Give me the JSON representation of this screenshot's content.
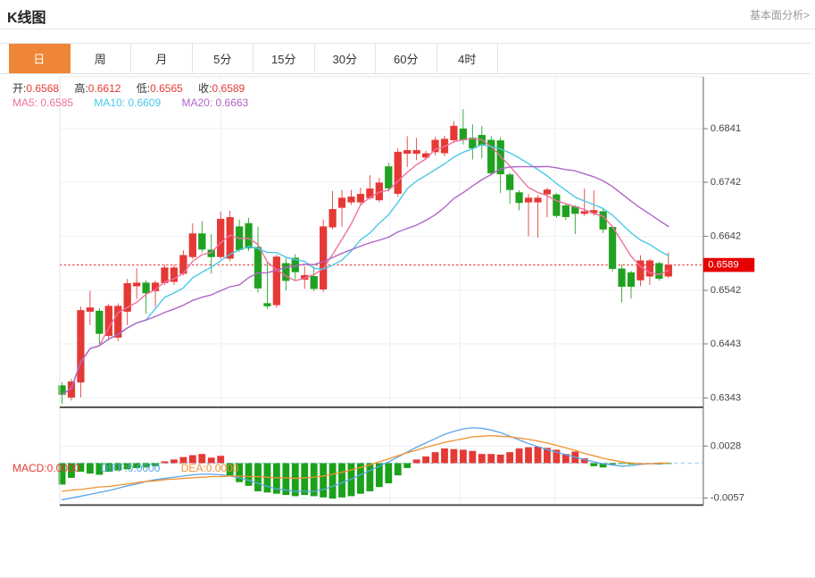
{
  "header": {
    "title": "K线图",
    "link": "基本面分析>"
  },
  "tabs": {
    "items": [
      "日",
      "周",
      "月",
      "5分",
      "15分",
      "30分",
      "60分",
      "4时"
    ],
    "active_index": 0
  },
  "legend": {
    "ohlc": [
      {
        "label": "开:",
        "value": "0.6568"
      },
      {
        "label": "高:",
        "value": "0.6612"
      },
      {
        "label": "低:",
        "value": "0.6565"
      },
      {
        "label": "收:",
        "value": "0.6589"
      }
    ],
    "ma": [
      {
        "label": "MA5:",
        "value": "0.6585"
      },
      {
        "label": "MA10:",
        "value": "0.6609"
      },
      {
        "label": "MA20:",
        "value": "0.6663"
      }
    ],
    "macd": [
      {
        "label": "MACD:",
        "value": "0.0000"
      },
      {
        "label": "DIFF:",
        "value": "0.0000"
      },
      {
        "label": "DEA:",
        "value": "0.0000"
      }
    ]
  },
  "colors": {
    "up": "#e53935",
    "down": "#21a121",
    "ma5": "#f0719f",
    "ma10": "#49c8e8",
    "ma20": "#b165c8",
    "diff": "#58a6e8",
    "dea": "#f2902f",
    "hist_up": "#e53935",
    "hist_down": "#1ba11b",
    "price_line": "#f54545",
    "price_tag_bg": "#e60000",
    "grid": "#e9eef5",
    "axis_line": "#666666",
    "axis_text": "#444444",
    "panel_border": "#3c3c3c",
    "zero_dash": "#a9d7f5",
    "tab_active": "#ef8536"
  },
  "chart_data": {
    "type": "candlestick",
    "title": "K线图",
    "legend_position": "top-left",
    "grid": "on",
    "price_axis": {
      "labels": [
        "0.6841",
        "0.6742",
        "0.6642",
        "0.6542",
        "0.6443",
        "0.6343"
      ],
      "max": 0.6841,
      "min": 0.6343,
      "current_price": "0.6589",
      "current_price_value": 0.6589
    },
    "time_grid_x": [
      216,
      434,
      524,
      647
    ],
    "ma_periods": [
      5,
      10,
      20
    ],
    "candles": [
      [
        0.6366,
        0.6372,
        0.6332,
        0.6349
      ],
      [
        0.6344,
        0.6378,
        0.6338,
        0.6373
      ],
      [
        0.6372,
        0.6512,
        0.6344,
        0.6505
      ],
      [
        0.6503,
        0.6541,
        0.6478,
        0.651
      ],
      [
        0.6504,
        0.6509,
        0.6443,
        0.6462
      ],
      [
        0.6458,
        0.6517,
        0.645,
        0.6513
      ],
      [
        0.6455,
        0.6518,
        0.6448,
        0.6513
      ],
      [
        0.6503,
        0.6563,
        0.6478,
        0.6555
      ],
      [
        0.655,
        0.6583,
        0.6526,
        0.6556
      ],
      [
        0.6556,
        0.656,
        0.6499,
        0.6537
      ],
      [
        0.6541,
        0.656,
        0.6512,
        0.6556
      ],
      [
        0.6556,
        0.6589,
        0.6552,
        0.6584
      ],
      [
        0.6558,
        0.6589,
        0.6552,
        0.6584
      ],
      [
        0.6573,
        0.6616,
        0.657,
        0.6607
      ],
      [
        0.6604,
        0.6666,
        0.66,
        0.6647
      ],
      [
        0.6647,
        0.667,
        0.6612,
        0.6618
      ],
      [
        0.6617,
        0.6646,
        0.6573,
        0.6604
      ],
      [
        0.6604,
        0.6688,
        0.66,
        0.6674
      ],
      [
        0.6601,
        0.6689,
        0.6596,
        0.6677
      ],
      [
        0.666,
        0.6673,
        0.6613,
        0.6617
      ],
      [
        0.6666,
        0.6676,
        0.6615,
        0.662
      ],
      [
        0.6622,
        0.666,
        0.6538,
        0.6546
      ],
      [
        0.6518,
        0.6594,
        0.6508,
        0.6513
      ],
      [
        0.6515,
        0.6608,
        0.651,
        0.6604
      ],
      [
        0.6592,
        0.6602,
        0.6542,
        0.656
      ],
      [
        0.6602,
        0.6609,
        0.656,
        0.6576
      ],
      [
        0.6562,
        0.6586,
        0.6545,
        0.657
      ],
      [
        0.6568,
        0.6586,
        0.6541,
        0.6545
      ],
      [
        0.6544,
        0.6673,
        0.6539,
        0.666
      ],
      [
        0.6659,
        0.6726,
        0.6655,
        0.6692
      ],
      [
        0.6695,
        0.6728,
        0.666,
        0.6713
      ],
      [
        0.6705,
        0.6728,
        0.67,
        0.6715
      ],
      [
        0.6705,
        0.6732,
        0.67,
        0.672
      ],
      [
        0.6713,
        0.6755,
        0.671,
        0.673
      ],
      [
        0.6709,
        0.675,
        0.6705,
        0.6741
      ],
      [
        0.6771,
        0.6778,
        0.6725,
        0.6731
      ],
      [
        0.6721,
        0.6805,
        0.6715,
        0.6798
      ],
      [
        0.6795,
        0.6827,
        0.677,
        0.6801
      ],
      [
        0.6795,
        0.6824,
        0.6783,
        0.6801
      ],
      [
        0.6788,
        0.68,
        0.6785,
        0.6795
      ],
      [
        0.6798,
        0.6826,
        0.6792,
        0.682
      ],
      [
        0.6796,
        0.6828,
        0.679,
        0.6822
      ],
      [
        0.682,
        0.6855,
        0.6815,
        0.6846
      ],
      [
        0.6841,
        0.6877,
        0.6812,
        0.682
      ],
      [
        0.6824,
        0.6849,
        0.6784,
        0.6805
      ],
      [
        0.6829,
        0.6846,
        0.6786,
        0.681
      ],
      [
        0.682,
        0.6828,
        0.6755,
        0.6759
      ],
      [
        0.6819,
        0.6825,
        0.6722,
        0.6757
      ],
      [
        0.6756,
        0.676,
        0.6702,
        0.6728
      ],
      [
        0.6723,
        0.6727,
        0.669,
        0.6704
      ],
      [
        0.6705,
        0.672,
        0.6642,
        0.6713
      ],
      [
        0.6705,
        0.6718,
        0.664,
        0.6713
      ],
      [
        0.672,
        0.6732,
        0.6677,
        0.6728
      ],
      [
        0.6719,
        0.6722,
        0.6676,
        0.668
      ],
      [
        0.6699,
        0.6702,
        0.6672,
        0.6678
      ],
      [
        0.6697,
        0.67,
        0.6646,
        0.6684
      ],
      [
        0.6684,
        0.673,
        0.668,
        0.6688
      ],
      [
        0.6685,
        0.6727,
        0.668,
        0.669
      ],
      [
        0.6688,
        0.6692,
        0.6648,
        0.6655
      ],
      [
        0.6659,
        0.6662,
        0.6577,
        0.6582
      ],
      [
        0.6582,
        0.659,
        0.652,
        0.6549
      ],
      [
        0.6575,
        0.6578,
        0.6527,
        0.6549
      ],
      [
        0.6561,
        0.6607,
        0.655,
        0.6597
      ],
      [
        0.6568,
        0.66,
        0.6552,
        0.6597
      ],
      [
        0.6592,
        0.6595,
        0.656,
        0.6564
      ],
      [
        0.6568,
        0.6612,
        0.6565,
        0.6589
      ]
    ],
    "macd": {
      "axis_labels": [
        "0.0028",
        "-0.0057"
      ],
      "axis_values": [
        0.0028,
        -0.0057
      ],
      "hist": [
        -0.0035,
        -0.0024,
        -0.0014,
        -0.0017,
        -0.0019,
        -0.0014,
        -0.0012,
        -0.001,
        -0.0008,
        -0.0007,
        -0.0005,
        0.0003,
        0.0006,
        0.001,
        0.0013,
        0.0015,
        0.0009,
        0.0012,
        -0.002,
        -0.0031,
        -0.0037,
        -0.0046,
        -0.0048,
        -0.005,
        -0.0052,
        -0.0054,
        -0.0052,
        -0.0054,
        -0.0056,
        -0.0058,
        -0.0056,
        -0.0054,
        -0.005,
        -0.0046,
        -0.0039,
        -0.0033,
        -0.002,
        -0.0008,
        0.0006,
        0.0011,
        0.0018,
        0.0024,
        0.0023,
        0.0022,
        0.002,
        0.0015,
        0.0015,
        0.0014,
        0.0018,
        0.0024,
        0.0026,
        0.0027,
        0.0025,
        0.0022,
        0.0015,
        0.0019,
        0.0008,
        -0.0005,
        -0.0007,
        -0.0002,
        -0.0001,
        -0.0002,
        -0.0001,
        -0.0001,
        -0.0002,
        -0.0001
      ],
      "diff": [
        -0.006,
        -0.0057,
        -0.0054,
        -0.0051,
        -0.0048,
        -0.0045,
        -0.0041,
        -0.0037,
        -0.0034,
        -0.003,
        -0.0027,
        -0.0025,
        -0.0023,
        -0.0021,
        -0.0019,
        -0.0018,
        -0.0018,
        -0.0019,
        -0.0021,
        -0.0024,
        -0.0028,
        -0.0033,
        -0.0038,
        -0.0042,
        -0.0044,
        -0.0046,
        -0.0046,
        -0.0046,
        -0.0043,
        -0.0038,
        -0.0032,
        -0.0026,
        -0.0019,
        -0.0012,
        -0.0005,
        0.0002,
        0.001,
        0.0018,
        0.0026,
        0.0033,
        0.004,
        0.0047,
        0.0052,
        0.0056,
        0.0058,
        0.0057,
        0.0054,
        0.005,
        0.0044,
        0.0038,
        0.0032,
        0.0027,
        0.0022,
        0.0018,
        0.0014,
        0.001,
        0.0006,
        0.0002,
        -0.0001,
        -0.0003,
        -0.0005,
        -0.0004,
        -0.0002,
        -0.0001,
        -0.0001,
        0.0
      ],
      "dea": [
        -0.0046,
        -0.0044,
        -0.0043,
        -0.0041,
        -0.0039,
        -0.0038,
        -0.0036,
        -0.0034,
        -0.0032,
        -0.003,
        -0.0029,
        -0.0027,
        -0.0026,
        -0.0025,
        -0.0024,
        -0.0023,
        -0.0022,
        -0.0022,
        -0.0021,
        -0.0021,
        -0.0022,
        -0.0022,
        -0.0023,
        -0.0024,
        -0.0024,
        -0.0025,
        -0.0024,
        -0.0023,
        -0.0021,
        -0.0018,
        -0.0015,
        -0.0011,
        -0.0007,
        -0.0003,
        0.0002,
        0.0007,
        0.0012,
        0.0017,
        0.0021,
        0.0026,
        0.003,
        0.0034,
        0.0037,
        0.004,
        0.0043,
        0.0044,
        0.0045,
        0.0044,
        0.0043,
        0.0041,
        0.0039,
        0.0036,
        0.0033,
        0.0029,
        0.0025,
        0.0021,
        0.0016,
        0.0012,
        0.0008,
        0.0005,
        0.0002,
        0.0,
        -0.0001,
        -0.0001,
        0.0,
        0.0
      ]
    }
  }
}
